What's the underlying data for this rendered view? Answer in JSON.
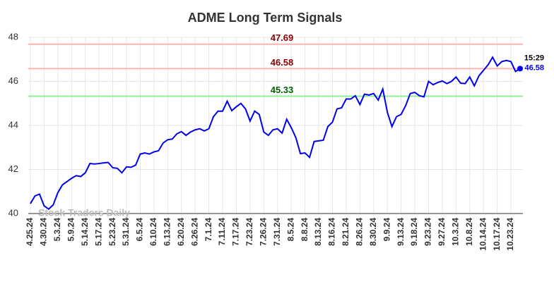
{
  "chart_data": {
    "type": "line",
    "title": "ADME Long Term Signals",
    "categories": [
      "4.25.24",
      null,
      null,
      "4.30.24",
      null,
      null,
      "5.3.24",
      null,
      null,
      "5.9.24",
      null,
      null,
      "5.14.24",
      null,
      null,
      "5.17.24",
      null,
      null,
      "5.23.24",
      null,
      null,
      "5.31.24",
      null,
      null,
      "6.5.24",
      null,
      null,
      "6.10.24",
      null,
      null,
      "6.13.24",
      null,
      null,
      "6.20.24",
      null,
      null,
      "6.26.24",
      null,
      null,
      "7.1.24",
      null,
      null,
      "7.11.24",
      null,
      null,
      "7.17.24",
      null,
      null,
      "7.23.24",
      null,
      null,
      "7.26.24",
      null,
      null,
      "7.31.24",
      null,
      null,
      "8.5.24",
      null,
      null,
      "8.8.24",
      null,
      null,
      "8.13.24",
      null,
      null,
      "8.16.24",
      null,
      null,
      "8.21.24",
      null,
      null,
      "8.26.24",
      null,
      null,
      "8.30.24",
      null,
      null,
      "9.9.24",
      null,
      null,
      "9.13.24",
      null,
      null,
      "9.18.24",
      null,
      null,
      "9.23.24",
      null,
      null,
      "9.27.24",
      null,
      null,
      "10.3.24",
      null,
      null,
      "10.8.24",
      null,
      null,
      "10.14.24",
      null,
      null,
      "10.17.24",
      null,
      null,
      "10.23.24",
      null,
      null
    ],
    "values": [
      40.45,
      40.8,
      40.88,
      40.35,
      40.2,
      40.4,
      40.95,
      41.3,
      41.45,
      41.6,
      41.72,
      41.68,
      41.85,
      42.27,
      42.25,
      42.27,
      42.3,
      42.32,
      42.08,
      42.05,
      41.85,
      42.12,
      42.1,
      42.2,
      42.7,
      42.75,
      42.7,
      42.8,
      42.85,
      43.2,
      43.35,
      43.38,
      43.62,
      43.72,
      43.55,
      43.7,
      43.8,
      43.85,
      43.75,
      43.85,
      44.4,
      44.65,
      44.65,
      45.1,
      44.67,
      44.85,
      45.0,
      44.75,
      44.2,
      44.65,
      44.5,
      43.7,
      43.55,
      43.8,
      43.85,
      43.65,
      44.28,
      43.9,
      43.45,
      42.72,
      42.75,
      42.55,
      43.27,
      43.3,
      43.33,
      43.95,
      44.15,
      44.75,
      44.8,
      45.2,
      45.2,
      45.35,
      44.95,
      45.42,
      45.38,
      45.45,
      45.15,
      45.65,
      44.6,
      43.95,
      44.4,
      44.5,
      44.9,
      45.45,
      45.5,
      45.35,
      45.3,
      46.0,
      45.85,
      45.95,
      46.02,
      45.9,
      46.0,
      46.2,
      45.92,
      45.9,
      46.2,
      45.8,
      46.25,
      46.5,
      46.75,
      47.1,
      46.7,
      46.9,
      46.95,
      46.9,
      46.45,
      46.58
    ],
    "color": "#0000ee",
    "ylim": [
      40,
      48
    ],
    "yticks": [
      40,
      42,
      44,
      46,
      48
    ],
    "grid": true,
    "reference_lines": [
      {
        "value": 47.69,
        "color": "#ffb3b3",
        "label_color": "#8b0000"
      },
      {
        "value": 46.58,
        "color": "#ffb3b3",
        "label_color": "#8b0000"
      },
      {
        "value": 45.33,
        "color": "#90ee90",
        "label_color": "#006400"
      }
    ],
    "last_time": "15:29",
    "watermark": "Stock Traders Daily"
  }
}
